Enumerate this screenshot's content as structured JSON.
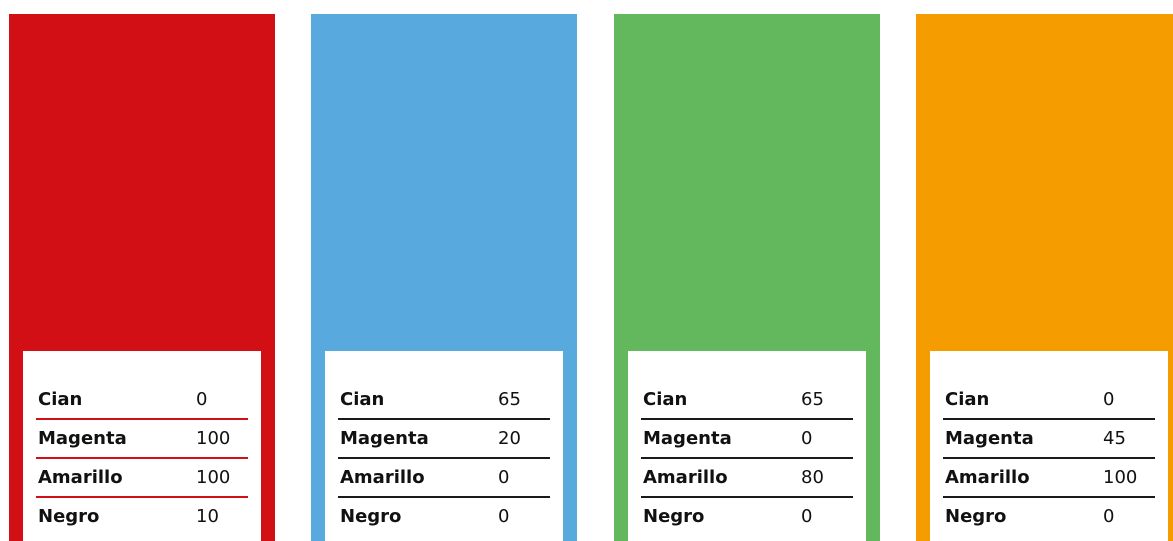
{
  "swatches": [
    {
      "color": "#d20f14",
      "line_color": "#d20f14",
      "rows": [
        {
          "label": "Cian",
          "value": "0"
        },
        {
          "label": "Magenta",
          "value": "100"
        },
        {
          "label": "Amarillo",
          "value": "100"
        },
        {
          "label": "Negro",
          "value": "10"
        }
      ]
    },
    {
      "color": "#58a9de",
      "line_color": "#1a1a1a",
      "rows": [
        {
          "label": "Cian",
          "value": "65"
        },
        {
          "label": "Magenta",
          "value": "20"
        },
        {
          "label": "Amarillo",
          "value": "0"
        },
        {
          "label": "Negro",
          "value": "0"
        }
      ]
    },
    {
      "color": "#63b75d",
      "line_color": "#1a1a1a",
      "rows": [
        {
          "label": "Cian",
          "value": "65"
        },
        {
          "label": "Magenta",
          "value": "0"
        },
        {
          "label": "Amarillo",
          "value": "80"
        },
        {
          "label": "Negro",
          "value": "0"
        }
      ]
    },
    {
      "color": "#f49c00",
      "line_color": "#1a1a1a",
      "rows": [
        {
          "label": "Cian",
          "value": "0"
        },
        {
          "label": "Magenta",
          "value": "45"
        },
        {
          "label": "Amarillo",
          "value": "100"
        },
        {
          "label": "Negro",
          "value": "0"
        }
      ]
    }
  ]
}
